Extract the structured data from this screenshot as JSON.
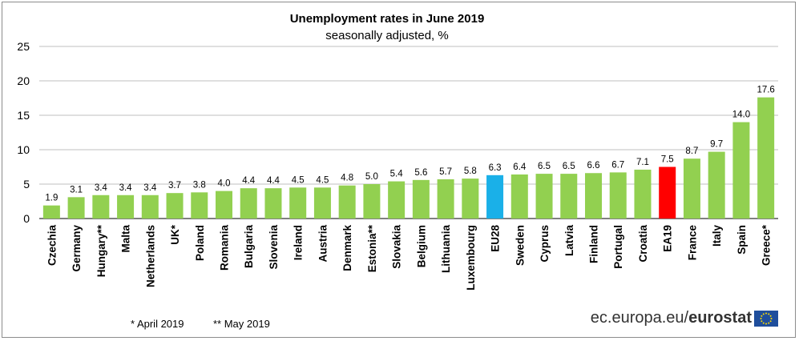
{
  "chart_data": {
    "type": "bar",
    "title": "Unemployment rates in June 2019",
    "subtitle": "seasonally adjusted, %",
    "xlabel": "",
    "ylabel": "",
    "ylim": [
      0,
      25
    ],
    "yticks": [
      0,
      5,
      10,
      15,
      20,
      25
    ],
    "grid": true,
    "categories": [
      "Czechia",
      "Germany",
      "Hungary**",
      "Malta",
      "Netherlands",
      "UK*",
      "Poland",
      "Romania",
      "Bulgaria",
      "Slovenia",
      "Ireland",
      "Austria",
      "Denmark",
      "Estonia**",
      "Slovakia",
      "Belgium",
      "Lithuania",
      "Luxembourg",
      "EU28",
      "Sweden",
      "Cyprus",
      "Latvia",
      "Finland",
      "Portugal",
      "Croatia",
      "EA19",
      "France",
      "Italy",
      "Spain",
      "Greece*"
    ],
    "values": [
      1.9,
      3.1,
      3.4,
      3.4,
      3.4,
      3.7,
      3.8,
      4.0,
      4.4,
      4.4,
      4.5,
      4.5,
      4.8,
      5.0,
      5.4,
      5.6,
      5.7,
      5.8,
      6.3,
      6.4,
      6.5,
      6.5,
      6.6,
      6.7,
      7.1,
      7.5,
      8.7,
      9.7,
      14.0,
      17.6
    ],
    "value_labels": [
      "1.9",
      "3.1",
      "3.4",
      "3.4",
      "3.4",
      "3.7",
      "3.8",
      "4.0",
      "4.4",
      "4.4",
      "4.5",
      "4.5",
      "4.8",
      "5.0",
      "5.4",
      "5.6",
      "5.7",
      "5.8",
      "6.3",
      "6.4",
      "6.5",
      "6.5",
      "6.6",
      "6.7",
      "7.1",
      "7.5",
      "8.7",
      "9.7",
      "14.0",
      "17.6"
    ],
    "colors": {
      "default": "#92d050",
      "EU28": "#1ab0e8",
      "EA19": "#ff0000"
    }
  },
  "footnotes": {
    "april": "*  April 2019",
    "may": "** May 2019"
  },
  "branding": {
    "prefix": "ec.europa.eu/",
    "name": "eurostat",
    "flag_color": "#1f4e9c",
    "star_color": "#ffdd00"
  }
}
